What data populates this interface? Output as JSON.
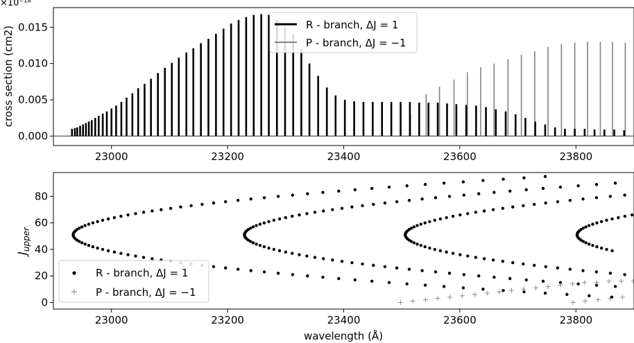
{
  "chart_data": [
    {
      "type": "line",
      "ylabel": "cross section (cm2)",
      "offset_text": "×10⁻¹⁸",
      "xlim": [
        22900,
        23900
      ],
      "ylim": [
        -0.0013,
        0.0177
      ],
      "yticks": [
        "0.000",
        "0.005",
        "0.010",
        "0.015"
      ],
      "ytick_values": [
        0.0,
        0.005,
        0.01,
        0.015
      ],
      "xticks": [
        "23000",
        "23200",
        "23400",
        "23600",
        "23800"
      ],
      "xtick_values": [
        23000,
        23200,
        23400,
        23600,
        23800
      ],
      "legend_position": "upper center",
      "series": [
        {
          "name": "R - branch, ΔJ = 1",
          "color": "#000000",
          "band_heads": [
            22933,
            23228,
            23505,
            23800
          ],
          "line_peaks": [
            [
              22932,
              0.001
            ],
            [
              22937,
              0.0011
            ],
            [
              22941,
              0.0012
            ],
            [
              22946,
              0.0014
            ],
            [
              22951,
              0.0016
            ],
            [
              22956,
              0.0018
            ],
            [
              22961,
              0.002
            ],
            [
              22966,
              0.0022
            ],
            [
              22972,
              0.0025
            ],
            [
              22978,
              0.0028
            ],
            [
              22985,
              0.0031
            ],
            [
              22992,
              0.0034
            ],
            [
              23000,
              0.0038
            ],
            [
              23008,
              0.0042
            ],
            [
              23017,
              0.0047
            ],
            [
              23026,
              0.0053
            ],
            [
              23036,
              0.0059
            ],
            [
              23046,
              0.0066
            ],
            [
              23057,
              0.0072
            ],
            [
              23068,
              0.0079
            ],
            [
              23080,
              0.0087
            ],
            [
              23092,
              0.0094
            ],
            [
              23104,
              0.0101
            ],
            [
              23116,
              0.0108
            ],
            [
              23129,
              0.0115
            ],
            [
              23141,
              0.0121
            ],
            [
              23154,
              0.0128
            ],
            [
              23167,
              0.0134
            ],
            [
              23180,
              0.0141
            ],
            [
              23193,
              0.0148
            ],
            [
              23206,
              0.0155
            ],
            [
              23219,
              0.016
            ],
            [
              23232,
              0.0164
            ],
            [
              23245,
              0.0167
            ],
            [
              23258,
              0.0168
            ],
            [
              23271,
              0.0167
            ],
            [
              23285,
              0.016
            ],
            [
              23299,
              0.015
            ],
            [
              23313,
              0.014
            ],
            [
              23327,
              0.012
            ],
            [
              23341,
              0.01
            ],
            [
              23356,
              0.0083
            ],
            [
              23371,
              0.0067
            ],
            [
              23386,
              0.0056
            ],
            [
              23402,
              0.005
            ],
            [
              23418,
              0.0048
            ],
            [
              23434,
              0.0047
            ],
            [
              23450,
              0.0047
            ],
            [
              23466,
              0.0047
            ],
            [
              23482,
              0.0047
            ],
            [
              23498,
              0.0047
            ],
            [
              23514,
              0.0047
            ],
            [
              23530,
              0.0046
            ],
            [
              23546,
              0.0046
            ],
            [
              23562,
              0.0046
            ],
            [
              23578,
              0.0045
            ],
            [
              23594,
              0.0044
            ],
            [
              23611,
              0.0043
            ],
            [
              23628,
              0.0042
            ],
            [
              23645,
              0.004
            ],
            [
              23662,
              0.0037
            ],
            [
              23679,
              0.0034
            ],
            [
              23696,
              0.003
            ],
            [
              23713,
              0.0025
            ],
            [
              23730,
              0.002
            ],
            [
              23747,
              0.0016
            ],
            [
              23764,
              0.0012
            ],
            [
              23781,
              0.001
            ],
            [
              23798,
              0.001
            ],
            [
              23815,
              0.001
            ],
            [
              23832,
              0.0009
            ],
            [
              23849,
              0.0009
            ],
            [
              23866,
              0.0009
            ],
            [
              23883,
              0.0008
            ]
          ]
        },
        {
          "name": "P - branch, ΔJ = −1",
          "color": "#808080",
          "line_peaks": [
            [
              23515,
              0.003
            ],
            [
              23542,
              0.0058
            ],
            [
              23565,
              0.0068
            ],
            [
              23590,
              0.0078
            ],
            [
              23613,
              0.0088
            ],
            [
              23636,
              0.0095
            ],
            [
              23659,
              0.01
            ],
            [
              23683,
              0.0106
            ],
            [
              23706,
              0.0112
            ],
            [
              23729,
              0.0117
            ],
            [
              23752,
              0.0123
            ],
            [
              23775,
              0.0127
            ],
            [
              23798,
              0.0129
            ],
            [
              23820,
              0.013
            ],
            [
              23842,
              0.013
            ],
            [
              23863,
              0.013
            ],
            [
              23885,
              0.0129
            ]
          ]
        }
      ]
    },
    {
      "type": "scatter",
      "xlabel": "wavelength (Å)",
      "ylabel": "J_upper",
      "xlim": [
        22900,
        23900
      ],
      "ylim": [
        -5,
        98
      ],
      "yticks": [
        "0",
        "20",
        "40",
        "60",
        "80"
      ],
      "ytick_values": [
        0,
        20,
        40,
        60,
        80
      ],
      "xticks": [
        "23000",
        "23200",
        "23400",
        "23600",
        "23800"
      ],
      "xtick_values": [
        23000,
        23200,
        23400,
        23600,
        23800
      ],
      "legend_position": "lower left",
      "series": [
        {
          "name": "R - branch, ΔJ = 1",
          "marker": "dot",
          "color": "#000000",
          "bands": [
            {
              "vertex_x": 22934,
              "vertex_j": 51,
              "j_min": 1,
              "j_max": 95
            },
            {
              "vertex_x": 23229,
              "vertex_j": 51,
              "j_min": 1,
              "j_max": 91
            },
            {
              "vertex_x": 23506,
              "vertex_j": 51,
              "j_min": 1,
              "j_max": 87
            },
            {
              "vertex_x": 23802,
              "vertex_j": 51,
              "j_min": 39,
              "j_max": 70
            }
          ]
        },
        {
          "name": "P - branch, ΔJ = −1",
          "marker": "plus",
          "color": "#808080",
          "points": [
            [
              23498,
              0
            ],
            [
              23519,
              1
            ],
            [
              23541,
              2
            ],
            [
              23562,
              3
            ],
            [
              23583,
              4
            ],
            [
              23604,
              5
            ],
            [
              23626,
              6
            ],
            [
              23647,
              7
            ],
            [
              23668,
              8
            ],
            [
              23689,
              9
            ],
            [
              23710,
              10
            ],
            [
              23731,
              11
            ],
            [
              23752,
              12
            ],
            [
              23773,
              13
            ],
            [
              23794,
              14
            ],
            [
              23815,
              15
            ],
            [
              23836,
              15
            ],
            [
              23857,
              16
            ],
            [
              23878,
              16
            ],
            [
              23899,
              16
            ],
            [
              23795,
              0
            ],
            [
              23816,
              1
            ],
            [
              23838,
              2
            ],
            [
              23859,
              3
            ],
            [
              23880,
              4
            ],
            [
              23901,
              5
            ]
          ]
        }
      ]
    }
  ],
  "legend_mu": "Δ"
}
